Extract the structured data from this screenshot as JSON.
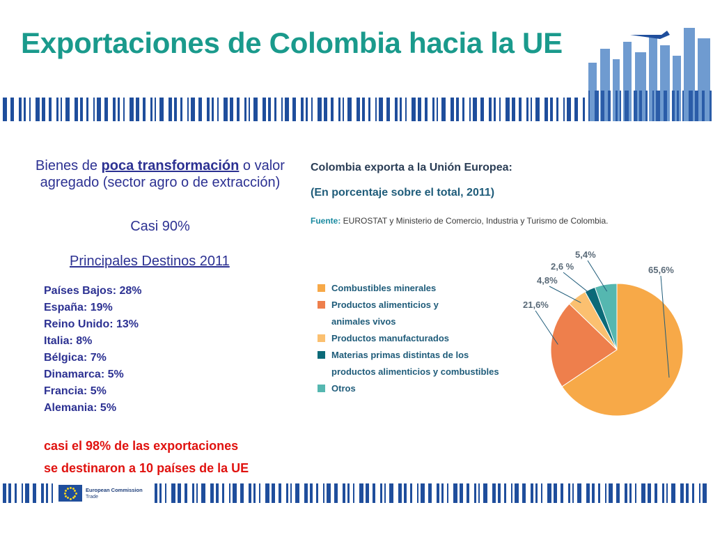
{
  "title": "Exportaciones de Colombia hacia la UE",
  "left": {
    "intro_before": "Bienes de ",
    "intro_link": "poca transformación",
    "intro_after": " o valor agregado (sector agro o de extracción)",
    "share": "Casi 90%",
    "destinations_title": "Principales Destinos 2011",
    "destinations": [
      "Países Bajos:  28%",
      "España:  19%",
      "Reino Unido: 13%",
      "Italia:  8%",
      "Bélgica:  7%",
      "Dinamarca: 5%",
      "Francia: 5%",
      "Alemania: 5%"
    ],
    "note_line1": "casi el 98% de las exportaciones",
    "note_line2": "se destinaron a 10 países de la UE"
  },
  "figure": {
    "title": "Colombia exporta a la Unión Europea:",
    "subtitle": "(En porcentaje sobre el total, 2011)",
    "source_label": "Fuente:",
    "source_text": " EUROSTAT y Ministerio de Comercio, Industria y Turismo de Colombia."
  },
  "chart_data": {
    "type": "pie",
    "slices": [
      {
        "label": "Combustibles minerales",
        "value": 65.6,
        "value_label": "65,6%",
        "color": "#f7a948"
      },
      {
        "label": "Productos alimenticios y animales vivos",
        "value": 21.6,
        "value_label": "21,6%",
        "color": "#ee7f4c"
      },
      {
        "label": "Productos manufacturados",
        "value": 4.8,
        "value_label": "4,8%",
        "color": "#fbc070"
      },
      {
        "label": "Materias primas distintas de los productos alimenticios y combustibles",
        "value": 2.6,
        "value_label": "2,6 %",
        "color": "#0b6a78"
      },
      {
        "label": "Otros",
        "value": 5.4,
        "value_label": "5,4%",
        "color": "#55b7b0"
      }
    ],
    "legend_lines": [
      [
        "Combustibles minerales"
      ],
      [
        "Productos alimenticios y",
        "animales vivos"
      ],
      [
        "Productos manufacturados"
      ],
      [
        "Materias primas distintas de los",
        "productos alimenticios y combustibles"
      ],
      [
        "Otros"
      ]
    ],
    "legend_position": "left"
  },
  "footer": {
    "logo_title": "European Commission",
    "logo_sub": "Trade"
  },
  "colors": {
    "title": "#1a9a8c",
    "text_blue": "#2c3192",
    "note_red": "#e0120f",
    "deco_blue": "#1f4e9c"
  }
}
